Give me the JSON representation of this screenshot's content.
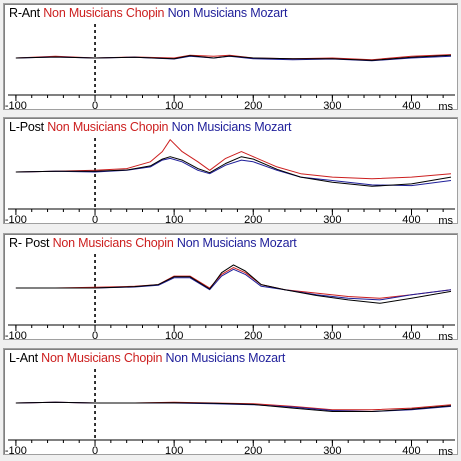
{
  "chart_data": [
    {
      "type": "line",
      "title_parts": {
        "region": "R-Ant",
        "chopin": "Non Musicians Chopin",
        "mozart": "Non Musicians Mozart"
      },
      "xlabel": "ms",
      "xlim": [
        -110,
        455
      ],
      "ylim": [
        -1,
        1
      ],
      "xticks": [
        -100,
        0,
        100,
        200,
        300,
        400
      ],
      "grid": false,
      "series": [
        {
          "name": "Non Musicians Chopin",
          "color": "#cc1f1f",
          "x": [
            -100,
            -50,
            0,
            50,
            100,
            120,
            150,
            170,
            200,
            250,
            300,
            350,
            400,
            450
          ],
          "y": [
            0.0,
            0.05,
            0.0,
            0.03,
            0.0,
            0.08,
            0.05,
            0.08,
            0.0,
            -0.02,
            0.0,
            -0.05,
            0.05,
            0.1
          ]
        },
        {
          "name": "Non Musicians Mozart",
          "color": "#1f1f9a",
          "x": [
            -100,
            -50,
            0,
            50,
            100,
            120,
            150,
            170,
            200,
            250,
            300,
            350,
            400,
            450
          ],
          "y": [
            0.0,
            0.03,
            0.0,
            0.02,
            -0.03,
            0.05,
            0.0,
            0.05,
            -0.02,
            -0.05,
            -0.03,
            -0.08,
            0.0,
            0.05
          ]
        },
        {
          "name": "",
          "color": "#000000",
          "x": [
            -100,
            -50,
            0,
            50,
            100,
            120,
            150,
            170,
            200,
            250,
            300,
            350,
            400,
            450
          ],
          "y": [
            0.0,
            0.03,
            0.0,
            0.02,
            -0.02,
            0.07,
            0.0,
            0.06,
            0.0,
            -0.02,
            -0.02,
            -0.07,
            0.02,
            0.08
          ]
        }
      ]
    },
    {
      "type": "line",
      "title_parts": {
        "region": "L-Post",
        "chopin": "Non Musicians Chopin",
        "mozart": "Non Musicians Mozart"
      },
      "xlabel": "ms",
      "xlim": [
        -110,
        455
      ],
      "ylim": [
        -1,
        1
      ],
      "xticks": [
        -100,
        0,
        100,
        200,
        300,
        400
      ],
      "grid": false,
      "series": [
        {
          "name": "Non Musicians Chopin",
          "color": "#cc1f1f",
          "x": [
            -100,
            -50,
            0,
            40,
            70,
            85,
            95,
            110,
            130,
            145,
            165,
            185,
            200,
            230,
            260,
            300,
            350,
            400,
            450
          ],
          "y": [
            0.0,
            0.02,
            0.05,
            0.1,
            0.3,
            0.6,
            0.95,
            0.6,
            0.3,
            0.05,
            0.4,
            0.6,
            0.45,
            0.15,
            -0.05,
            -0.15,
            -0.2,
            -0.15,
            -0.05
          ]
        },
        {
          "name": "Non Musicians Mozart",
          "color": "#1f1f9a",
          "x": [
            -100,
            -50,
            0,
            40,
            70,
            85,
            95,
            110,
            130,
            145,
            165,
            185,
            200,
            230,
            260,
            300,
            350,
            400,
            450
          ],
          "y": [
            0.0,
            0.02,
            0.0,
            0.05,
            0.15,
            0.35,
            0.4,
            0.3,
            0.05,
            -0.05,
            0.2,
            0.35,
            0.3,
            0.05,
            -0.15,
            -0.25,
            -0.38,
            -0.4,
            -0.25
          ]
        },
        {
          "name": "",
          "color": "#000000",
          "x": [
            -100,
            -50,
            0,
            40,
            70,
            85,
            95,
            110,
            130,
            145,
            165,
            185,
            200,
            230,
            260,
            300,
            350,
            400,
            450
          ],
          "y": [
            0.0,
            0.02,
            0.02,
            0.06,
            0.18,
            0.38,
            0.45,
            0.35,
            0.1,
            -0.02,
            0.25,
            0.45,
            0.38,
            0.08,
            -0.15,
            -0.3,
            -0.42,
            -0.35,
            -0.15
          ]
        }
      ]
    },
    {
      "type": "line",
      "title_parts": {
        "region": "R- Post",
        "chopin": "Non Musicians Chopin",
        "mozart": "Non Musicians Mozart"
      },
      "xlabel": "ms",
      "xlim": [
        -110,
        455
      ],
      "ylim": [
        -1,
        1
      ],
      "xticks": [
        -100,
        0,
        100,
        200,
        300,
        400
      ],
      "grid": false,
      "series": [
        {
          "name": "Non Musicians Chopin",
          "color": "#cc1f1f",
          "x": [
            -100,
            -50,
            0,
            50,
            80,
            100,
            120,
            145,
            160,
            175,
            190,
            210,
            240,
            280,
            320,
            360,
            400,
            450
          ],
          "y": [
            0.0,
            0.0,
            0.02,
            0.05,
            0.1,
            0.35,
            0.35,
            0.0,
            0.4,
            0.6,
            0.45,
            0.1,
            -0.05,
            -0.15,
            -0.25,
            -0.3,
            -0.2,
            -0.05
          ]
        },
        {
          "name": "Non Musicians Mozart",
          "color": "#1f1f9a",
          "x": [
            -100,
            -50,
            0,
            50,
            80,
            100,
            120,
            145,
            160,
            175,
            190,
            210,
            240,
            280,
            320,
            360,
            400,
            450
          ],
          "y": [
            0.0,
            0.0,
            0.0,
            0.03,
            0.08,
            0.3,
            0.3,
            -0.05,
            0.35,
            0.55,
            0.4,
            0.05,
            -0.05,
            -0.2,
            -0.3,
            -0.35,
            -0.2,
            -0.05
          ]
        },
        {
          "name": "",
          "color": "#000000",
          "x": [
            -100,
            -50,
            0,
            50,
            80,
            100,
            120,
            145,
            160,
            175,
            190,
            210,
            240,
            280,
            320,
            360,
            400,
            450
          ],
          "y": [
            0.0,
            0.0,
            0.0,
            0.04,
            0.1,
            0.33,
            0.33,
            -0.03,
            0.45,
            0.68,
            0.5,
            0.1,
            -0.05,
            -0.22,
            -0.35,
            -0.45,
            -0.3,
            -0.1
          ]
        }
      ]
    },
    {
      "type": "line",
      "title_parts": {
        "region": "L-Ant",
        "chopin": "Non Musicians Chopin",
        "mozart": "Non Musicians Mozart"
      },
      "xlabel": "ms",
      "xlim": [
        -110,
        455
      ],
      "ylim": [
        -1,
        1
      ],
      "xticks": [
        -100,
        0,
        100,
        200,
        300,
        400
      ],
      "grid": false,
      "series": [
        {
          "name": "Non Musicians Chopin",
          "color": "#cc1f1f",
          "x": [
            -100,
            -50,
            0,
            50,
            100,
            150,
            200,
            250,
            300,
            350,
            400,
            450
          ],
          "y": [
            0.0,
            0.02,
            0.0,
            0.0,
            0.02,
            0.0,
            -0.02,
            -0.1,
            -0.2,
            -0.2,
            -0.15,
            -0.05
          ]
        },
        {
          "name": "Non Musicians Mozart",
          "color": "#1f1f9a",
          "x": [
            -100,
            -50,
            0,
            50,
            100,
            150,
            200,
            250,
            300,
            350,
            400,
            450
          ],
          "y": [
            0.0,
            0.02,
            0.0,
            0.0,
            0.0,
            -0.02,
            -0.05,
            -0.12,
            -0.22,
            -0.25,
            -0.2,
            -0.1
          ]
        },
        {
          "name": "",
          "color": "#000000",
          "x": [
            -100,
            -50,
            0,
            50,
            100,
            150,
            200,
            250,
            300,
            350,
            400,
            450
          ],
          "y": [
            0.0,
            0.02,
            0.0,
            0.0,
            0.01,
            -0.01,
            -0.04,
            -0.15,
            -0.25,
            -0.25,
            -0.18,
            -0.08
          ]
        }
      ]
    }
  ]
}
